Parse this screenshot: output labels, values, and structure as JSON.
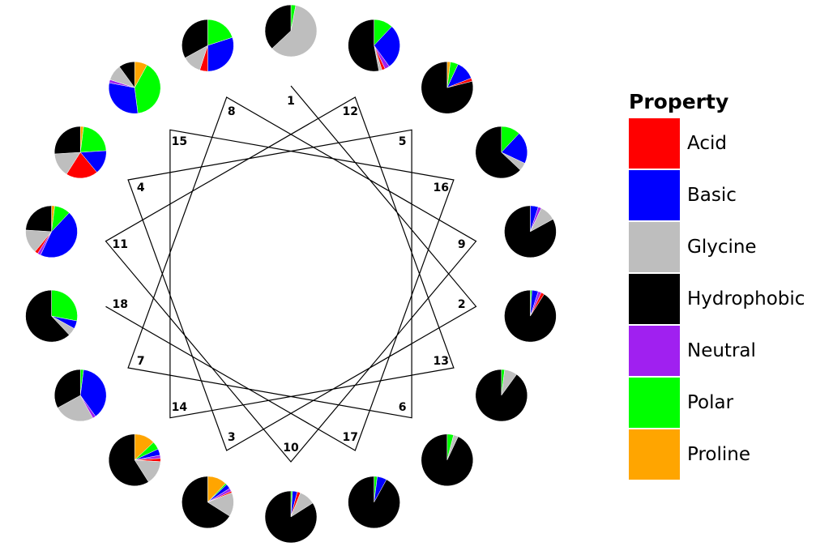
{
  "legend": {
    "title": "Property",
    "items": [
      {
        "label": "Acid",
        "color": "#ff0000"
      },
      {
        "label": "Basic",
        "color": "#0000ff"
      },
      {
        "label": "Glycine",
        "color": "#bebebe"
      },
      {
        "label": "Hydrophobic",
        "color": "#000000"
      },
      {
        "label": "Neutral",
        "color": "#a020f0"
      },
      {
        "label": "Polar",
        "color": "#00ff00"
      },
      {
        "label": "Proline",
        "color": "#ffa500"
      }
    ]
  },
  "positions": [
    {
      "label": "1",
      "composition": {
        "Glycine": 0.6,
        "Polar": 0.03,
        "Hydrophobic": 0.37
      }
    },
    {
      "label": "2",
      "composition": {
        "Acid": 0.02,
        "Basic": 0.04,
        "Neutral": 0.02,
        "Polar": 0.01,
        "Hydrophobic": 0.91
      }
    },
    {
      "label": "3",
      "composition": {
        "Proline": 0.12,
        "Polar": 0.01,
        "Basic": 0.03,
        "Neutral": 0.02,
        "Acid": 0.01,
        "Glycine": 0.15,
        "Hydrophobic": 0.66
      }
    },
    {
      "label": "4",
      "composition": {
        "Polar": 0.22,
        "Basic": 0.15,
        "Acid": 0.2,
        "Glycine": 0.15,
        "Proline": 0.02,
        "Hydrophobic": 0.26
      }
    },
    {
      "label": "5",
      "composition": {
        "Polar": 0.05,
        "Proline": 0.02,
        "Basic": 0.12,
        "Acid": 0.02,
        "Hydrophobic": 0.79
      }
    },
    {
      "label": "6",
      "composition": {
        "Polar": 0.04,
        "Glycine": 0.03,
        "Hydrophobic": 0.93
      }
    },
    {
      "label": "7",
      "composition": {
        "Polar": 0.02,
        "Basic": 0.38,
        "Neutral": 0.02,
        "Glycine": 0.25,
        "Hydrophobic": 0.33
      }
    },
    {
      "label": "8",
      "composition": {
        "Polar": 0.2,
        "Basic": 0.3,
        "Acid": 0.05,
        "Glycine": 0.12,
        "Hydrophobic": 0.33
      }
    },
    {
      "label": "9",
      "composition": {
        "Glycine": 0.1,
        "Basic": 0.05,
        "Neutral": 0.02,
        "Hydrophobic": 0.83
      }
    },
    {
      "label": "10",
      "composition": {
        "Glycine": 0.1,
        "Basic": 0.03,
        "Acid": 0.02,
        "Polar": 0.01,
        "Hydrophobic": 0.84
      }
    },
    {
      "label": "11",
      "composition": {
        "Polar": 0.1,
        "Proline": 0.02,
        "Basic": 0.45,
        "Acid": 0.02,
        "Neutral": 0.02,
        "Glycine": 0.15,
        "Hydrophobic": 0.24
      }
    },
    {
      "label": "12",
      "composition": {
        "Polar": 0.12,
        "Basic": 0.28,
        "Neutral": 0.03,
        "Acid": 0.02,
        "Glycine": 0.02,
        "Hydrophobic": 0.53
      }
    },
    {
      "label": "13",
      "composition": {
        "Polar": 0.02,
        "Glycine": 0.08,
        "Hydrophobic": 0.9
      }
    },
    {
      "label": "14",
      "composition": {
        "Proline": 0.13,
        "Polar": 0.05,
        "Basic": 0.04,
        "Neutral": 0.02,
        "Acid": 0.02,
        "Glycine": 0.15,
        "Hydrophobic": 0.59
      }
    },
    {
      "label": "15",
      "composition": {
        "Polar": 0.4,
        "Basic": 0.3,
        "Neutral": 0.02,
        "Glycine": 0.1,
        "Proline": 0.08,
        "Hydrophobic": 0.1
      }
    },
    {
      "label": "16",
      "composition": {
        "Polar": 0.12,
        "Basic": 0.2,
        "Glycine": 0.05,
        "Hydrophobic": 0.63
      }
    },
    {
      "label": "17",
      "composition": {
        "Basic": 0.06,
        "Polar": 0.02,
        "Hydrophobic": 0.92
      }
    },
    {
      "label": "18",
      "composition": {
        "Polar": 0.28,
        "Basic": 0.05,
        "Glycine": 0.05,
        "Hydrophobic": 0.62
      }
    }
  ]
}
